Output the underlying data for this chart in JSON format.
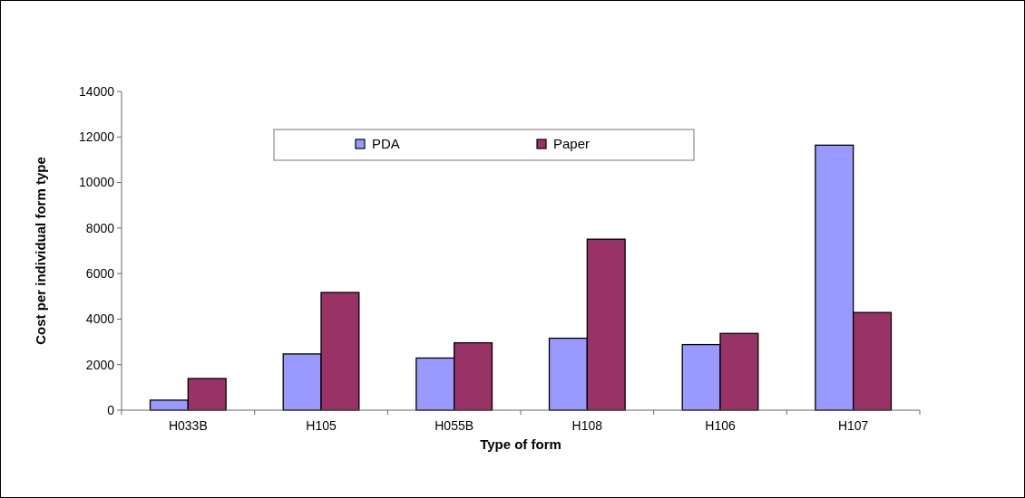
{
  "chart_data": {
    "type": "bar",
    "xlabel": "Type of form",
    "ylabel": "Cost per individual form type",
    "categories": [
      "H033B",
      "H105",
      "H055B",
      "H108",
      "H106",
      "H107"
    ],
    "series": [
      {
        "name": "PDA",
        "color": "#9999ff",
        "values": [
          440,
          2470,
          2290,
          3160,
          2880,
          11640
        ]
      },
      {
        "name": "Paper",
        "color": "#993366",
        "values": [
          1390,
          5170,
          2960,
          7510,
          3370,
          4290
        ]
      }
    ],
    "ylim": [
      0,
      14000
    ],
    "yticks": [
      0,
      2000,
      4000,
      6000,
      8000,
      10000,
      12000,
      14000
    ],
    "grid": false,
    "legend": "top"
  }
}
